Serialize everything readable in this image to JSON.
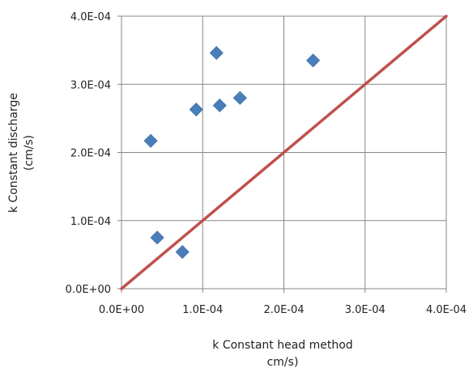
{
  "chart_data": {
    "type": "scatter",
    "title": "",
    "xlabel_lines": [
      "k Constant head method",
      "cm/s)"
    ],
    "ylabel_lines": [
      "k Constant discharge",
      "(cm/s)"
    ],
    "xlim": [
      0,
      0.0004
    ],
    "ylim": [
      0,
      0.0004
    ],
    "grid": true,
    "legend": "none",
    "x_ticks": [
      {
        "value": 0,
        "label": "0.0E+00"
      },
      {
        "value": 0.0001,
        "label": "1.0E-04"
      },
      {
        "value": 0.0002,
        "label": "2.0E-04"
      },
      {
        "value": 0.0003,
        "label": "3.0E-04"
      },
      {
        "value": 0.0004,
        "label": "4.0E-04"
      }
    ],
    "y_ticks": [
      {
        "value": 0,
        "label": "0.0E+00"
      },
      {
        "value": 0.0001,
        "label": "1.0E-04"
      },
      {
        "value": 0.0002,
        "label": "2.0E-04"
      },
      {
        "value": 0.0003,
        "label": "3.0E-04"
      },
      {
        "value": 0.0004,
        "label": "4.0E-04"
      }
    ],
    "series": [
      {
        "marker": "diamond",
        "color": "#4a7ebb",
        "points": [
          {
            "x": 3.6e-05,
            "y": 0.000217
          },
          {
            "x": 4.4e-05,
            "y": 7.5e-05
          },
          {
            "x": 7.5e-05,
            "y": 5.4e-05
          },
          {
            "x": 9.2e-05,
            "y": 0.000263
          },
          {
            "x": 0.000117,
            "y": 0.000346
          },
          {
            "x": 0.000121,
            "y": 0.000269
          },
          {
            "x": 0.000146,
            "y": 0.00028
          },
          {
            "x": 0.000236,
            "y": 0.000335
          }
        ]
      }
    ],
    "reference_line": {
      "color": "#c0504d",
      "points": [
        {
          "x": 0,
          "y": 0
        },
        {
          "x": 0.0004,
          "y": 0.0004
        }
      ]
    }
  }
}
